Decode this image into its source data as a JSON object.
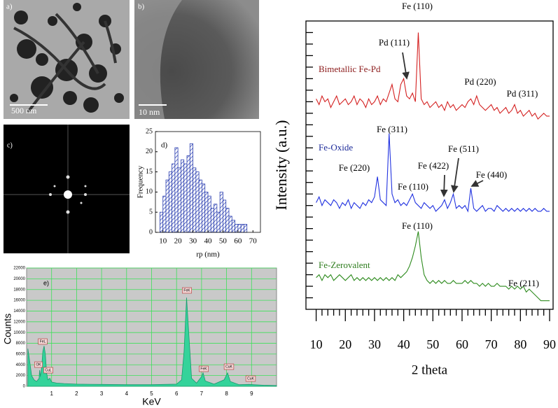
{
  "panels": {
    "a": {
      "label": "a)",
      "scale": "500 nm"
    },
    "b": {
      "label": "b)",
      "scale": "10 nm"
    },
    "c": {
      "label": "c)"
    }
  },
  "chart_data": [
    {
      "type": "histogram",
      "annotation": "d)",
      "xlabel": "rp (nm)",
      "ylabel": "Frequency",
      "bins": [
        8,
        10,
        12,
        14,
        16,
        18,
        20,
        22,
        24,
        26,
        28,
        30,
        32,
        34,
        36,
        38,
        40,
        42,
        44,
        46,
        48,
        50,
        52,
        54,
        56,
        58,
        60,
        62,
        64,
        66
      ],
      "values": [
        5,
        9,
        13,
        15,
        17,
        21,
        16,
        18,
        17,
        19,
        22,
        16,
        15,
        13,
        12,
        10,
        9,
        6,
        7,
        5,
        10,
        8,
        6,
        4,
        3,
        2,
        2,
        2,
        2
      ],
      "color": "#2b3fb0",
      "xlim": [
        5,
        75
      ],
      "ylim": [
        0,
        25
      ],
      "xticks": [
        10,
        20,
        30,
        40,
        50,
        60,
        70
      ],
      "yticks": [
        0,
        5,
        10,
        15,
        20,
        25
      ]
    },
    {
      "type": "area",
      "annotation": "e)",
      "xlabel": "KeV",
      "ylabel": "Counts",
      "color": "#34d39a",
      "grid": true,
      "grid_color": "#3ee05a",
      "background": "#c9c9c9",
      "x": [
        0.05,
        0.1,
        0.2,
        0.3,
        0.4,
        0.5,
        0.52,
        0.55,
        0.6,
        0.65,
        0.7,
        0.75,
        0.8,
        0.85,
        0.93,
        1.0,
        1.2,
        1.5,
        2,
        3,
        4,
        5,
        6,
        6.2,
        6.3,
        6.4,
        6.5,
        6.6,
        6.8,
        7.0,
        7.06,
        7.15,
        7.5,
        7.9,
        8.04,
        8.15,
        8.5,
        8.9,
        9.5,
        10
      ],
      "values": [
        7000,
        5500,
        2000,
        1200,
        900,
        1500,
        3000,
        1800,
        3500,
        6500,
        7500,
        6000,
        2500,
        1200,
        1500,
        800,
        600,
        500,
        400,
        350,
        300,
        300,
        400,
        1200,
        6500,
        16500,
        9000,
        1500,
        600,
        1800,
        2500,
        1000,
        400,
        1200,
        2500,
        900,
        300,
        350,
        200,
        150
      ],
      "xlim": [
        0,
        10
      ],
      "ylim": [
        0,
        22000
      ],
      "xticks": [
        1,
        2,
        3,
        4,
        5,
        6,
        7,
        8,
        9
      ],
      "yticks": [
        0,
        2000,
        4000,
        6000,
        8000,
        10000,
        12000,
        14000,
        16000,
        18000,
        20000,
        22000
      ],
      "peak_labels": [
        "OK",
        "FeL",
        "CuL",
        "FeK",
        "FeK",
        "CuK",
        "CuK"
      ]
    },
    {
      "type": "line",
      "xlabel": "2 theta",
      "ylabel": "Intensity (a.u.)",
      "x": [
        10,
        11,
        12,
        13,
        14,
        15,
        16,
        17,
        18,
        19,
        20,
        21,
        22,
        23,
        24,
        25,
        26,
        27,
        28,
        29,
        30,
        31,
        32,
        33,
        34,
        35,
        36,
        37,
        38,
        39,
        40,
        41,
        42,
        43,
        44,
        45,
        46,
        47,
        48,
        49,
        50,
        51,
        52,
        53,
        54,
        55,
        56,
        57,
        58,
        59,
        60,
        61,
        62,
        63,
        64,
        65,
        66,
        67,
        68,
        69,
        70,
        71,
        72,
        73,
        74,
        75,
        76,
        77,
        78,
        79,
        80,
        81,
        82,
        83,
        84,
        85,
        86,
        87,
        88,
        89,
        90
      ],
      "series": [
        {
          "name": "Bimetallic Fe-Pd",
          "color": "#d42020",
          "label_color": "#8b1a1a",
          "values": [
            73,
            71,
            74,
            72,
            73,
            70,
            72,
            74,
            71,
            72,
            73,
            71,
            72,
            74,
            71,
            73,
            72,
            70,
            73,
            71,
            72,
            74,
            71,
            73,
            72,
            75,
            78,
            73,
            72,
            78,
            80,
            74,
            73,
            75,
            72,
            96,
            73,
            71,
            72,
            70,
            71,
            72,
            70,
            71,
            69,
            72,
            70,
            71,
            69,
            70,
            71,
            70,
            72,
            73,
            71,
            74,
            71,
            70,
            69,
            70,
            71,
            69,
            70,
            68,
            69,
            70,
            68,
            69,
            71,
            68,
            69,
            67,
            68,
            69,
            67,
            68,
            66,
            67,
            68,
            67,
            67
          ]
        },
        {
          "name": "Fe-Oxide",
          "color": "#2233e0",
          "label_color": "#1c2a99",
          "values": [
            37,
            39,
            36,
            38,
            37,
            36,
            38,
            37,
            35,
            37,
            36,
            38,
            35,
            37,
            36,
            35,
            37,
            36,
            38,
            37,
            39,
            46,
            38,
            37,
            36,
            61,
            40,
            37,
            38,
            36,
            37,
            36,
            38,
            40,
            37,
            36,
            35,
            37,
            36,
            35,
            36,
            34,
            35,
            36,
            38,
            35,
            37,
            40,
            35,
            36,
            35,
            36,
            34,
            42,
            35,
            34,
            35,
            36,
            34,
            35,
            35,
            34,
            36,
            35,
            34,
            35,
            34,
            35,
            34,
            35,
            34,
            35,
            34,
            35,
            34,
            35,
            34,
            34,
            35,
            34,
            34
          ]
        },
        {
          "name": "Fe-Zerovalent",
          "color": "#2e8b1e",
          "label_color": "#2e7d1e",
          "values": [
            11,
            12,
            10,
            12,
            11,
            12,
            10,
            11,
            12,
            11,
            10,
            11,
            12,
            10,
            11,
            10,
            11,
            10,
            11,
            10,
            11,
            10,
            11,
            10,
            11,
            10,
            11,
            10,
            12,
            11,
            12,
            13,
            15,
            18,
            22,
            27,
            18,
            12,
            10,
            9,
            10,
            9,
            10,
            9,
            10,
            9,
            9,
            10,
            9,
            9,
            9,
            10,
            9,
            10,
            9,
            9,
            8,
            9,
            8,
            9,
            8,
            8,
            9,
            8,
            8,
            8,
            7,
            8,
            7,
            8,
            7,
            8,
            6,
            7,
            6,
            5,
            4,
            3,
            3,
            3,
            3
          ]
        }
      ],
      "annotations": [
        "Fe (110)",
        "Pd (111)",
        "Pd (220)",
        "Pd (311)",
        "Fe (311)",
        "Fe (220)",
        "Fe (110)",
        "Fe (422)",
        "Fe (511)",
        "Fe (440)",
        "Fe (110)",
        "Fe (211)"
      ],
      "xlim": [
        6.5,
        91.2
      ],
      "ylim": [
        0,
        100
      ],
      "xticks": [
        10,
        20,
        30,
        40,
        50,
        60,
        70,
        80,
        90
      ],
      "xminorticks": [
        12,
        14,
        16,
        18,
        22,
        24,
        26,
        28,
        32,
        34,
        36,
        38,
        42,
        44,
        46,
        48,
        52,
        54,
        56,
        58,
        62,
        64,
        66,
        68,
        72,
        74,
        76,
        78,
        82,
        84,
        86,
        88
      ],
      "yticks": [
        4,
        8,
        12,
        16,
        20,
        24,
        28,
        32,
        36,
        40,
        44,
        48,
        52,
        56,
        60,
        64,
        68,
        72,
        76,
        80,
        84,
        88,
        92,
        96
      ]
    }
  ]
}
